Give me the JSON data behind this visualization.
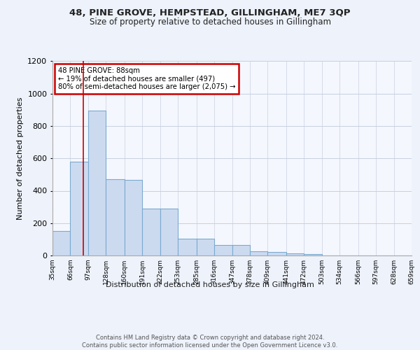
{
  "title1": "48, PINE GROVE, HEMPSTEAD, GILLINGHAM, ME7 3QP",
  "title2": "Size of property relative to detached houses in Gillingham",
  "xlabel": "Distribution of detached houses by size in Gillingham",
  "ylabel": "Number of detached properties",
  "bar_values": [
    152,
    580,
    895,
    470,
    465,
    290,
    290,
    105,
    105,
    65,
    65,
    28,
    20,
    15,
    10,
    0,
    0,
    0,
    0,
    0
  ],
  "bar_edges": [
    35,
    66,
    97,
    128,
    160,
    191,
    222,
    253,
    285,
    316,
    347,
    378,
    409,
    441,
    472,
    503,
    534,
    566,
    597,
    628,
    659
  ],
  "tick_labels": [
    "35sqm",
    "66sqm",
    "97sqm",
    "128sqm",
    "160sqm",
    "191sqm",
    "222sqm",
    "253sqm",
    "285sqm",
    "316sqm",
    "347sqm",
    "378sqm",
    "409sqm",
    "441sqm",
    "472sqm",
    "503sqm",
    "534sqm",
    "566sqm",
    "597sqm",
    "628sqm",
    "659sqm"
  ],
  "bar_color": "#ccdaf0",
  "bar_edge_color": "#7aaad0",
  "vline_x": 88,
  "annotation_text": "48 PINE GROVE: 88sqm\n← 19% of detached houses are smaller (497)\n80% of semi-detached houses are larger (2,075) →",
  "annotation_box_color": "#ffffff",
  "annotation_box_edge": "#cc0000",
  "ylim": [
    0,
    1200
  ],
  "yticks": [
    0,
    200,
    400,
    600,
    800,
    1000,
    1200
  ],
  "footer": "Contains HM Land Registry data © Crown copyright and database right 2024.\nContains public sector information licensed under the Open Government Licence v3.0.",
  "bg_color": "#edf2fb",
  "plot_bg_color": "#f4f7fd"
}
